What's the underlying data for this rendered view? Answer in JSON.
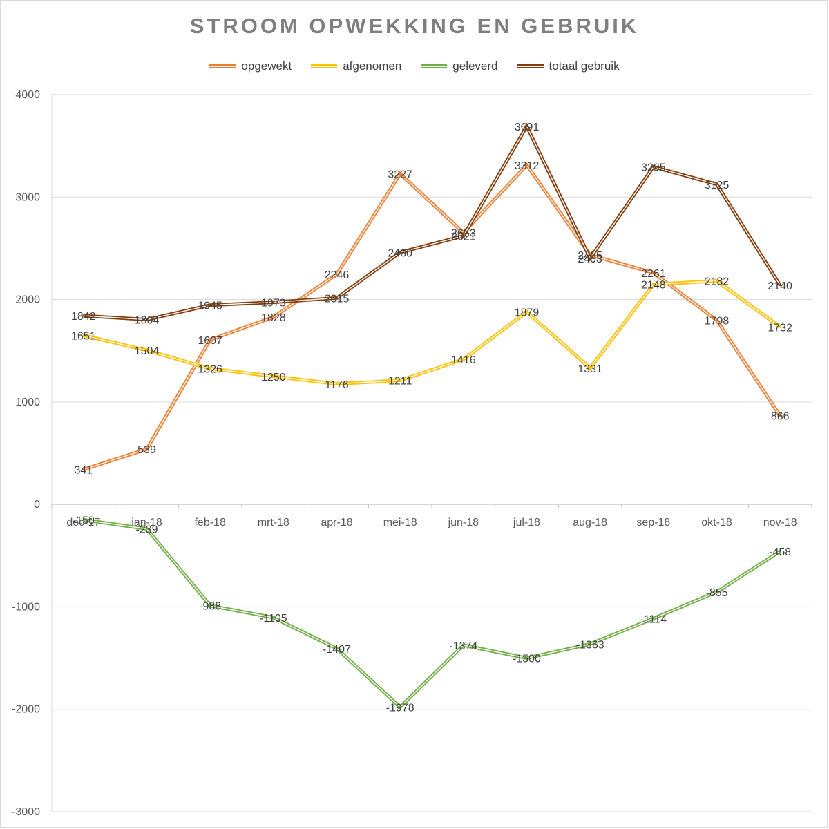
{
  "chart_data": {
    "type": "line",
    "title": "STROOM OPWEKKING EN GEBRUIK",
    "categories": [
      "dec-17",
      "jan-18",
      "feb-18",
      "mrt-18",
      "apr-18",
      "mei-18",
      "jun-18",
      "jul-18",
      "aug-18",
      "sep-18",
      "okt-18",
      "nov-18"
    ],
    "series": [
      {
        "name": "opgewekt",
        "color": "#ed7d31",
        "values": [
          341,
          539,
          1607,
          1828,
          2246,
          3227,
          2653,
          3312,
          2435,
          2261,
          1798,
          866
        ]
      },
      {
        "name": "afgenomen",
        "color": "#ffc000",
        "values": [
          1651,
          1504,
          1326,
          1250,
          1176,
          1211,
          1416,
          1879,
          1331,
          2148,
          2182,
          1732
        ]
      },
      {
        "name": "geleverd",
        "color": "#70ad47",
        "values": [
          -150,
          -239,
          -988,
          -1105,
          -1407,
          -1978,
          -1374,
          -1500,
          -1363,
          -1114,
          -855,
          -458
        ]
      },
      {
        "name": "totaal gebruik",
        "color": "#843c0c",
        "values": [
          1842,
          1804,
          1945,
          1973,
          2015,
          2460,
          2621,
          3691,
          2403,
          3295,
          3125,
          2140
        ]
      }
    ],
    "ylim": [
      -3000,
      4000
    ],
    "yticks": [
      4000,
      3000,
      2000,
      1000,
      0,
      -1000,
      -2000,
      -3000
    ],
    "grid": true,
    "legend_position": "top"
  }
}
